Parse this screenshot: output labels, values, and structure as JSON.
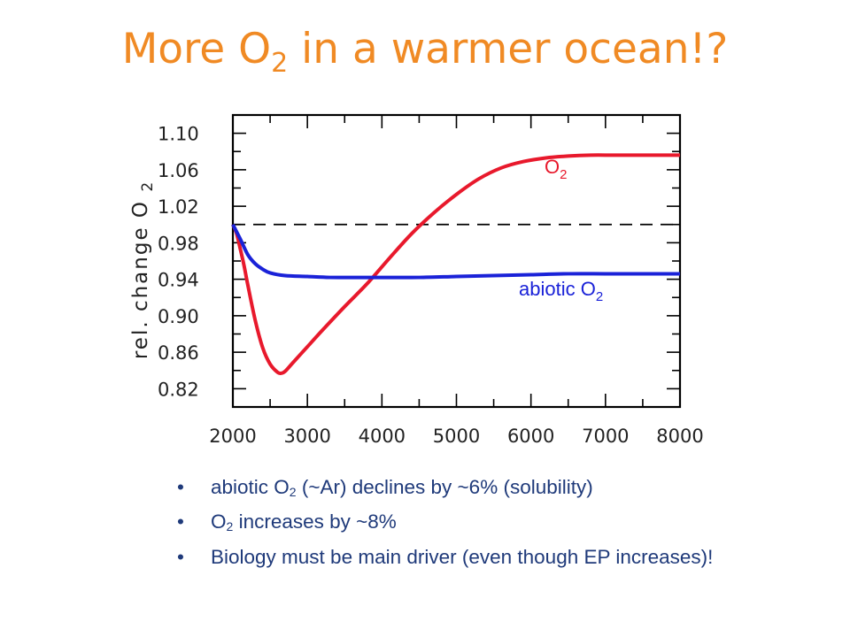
{
  "title": {
    "text_before": "More O",
    "sub": "2",
    "text_after": " in a warmer ocean!?"
  },
  "chart_data": {
    "type": "line",
    "title": "",
    "xlabel": "",
    "ylabel": "rel. change O2",
    "xlim": [
      2000,
      8000
    ],
    "ylim": [
      0.8,
      1.12
    ],
    "x_ticks": [
      "2000",
      "3000",
      "4000",
      "5000",
      "6000",
      "7000",
      "8000"
    ],
    "y_ticks": [
      "1.10",
      "1.06",
      "1.02",
      "0.98",
      "0.94",
      "0.90",
      "0.86",
      "0.82"
    ],
    "reference_line": {
      "y": 1.0,
      "style": "dashed",
      "color": "#000000"
    },
    "grid": false,
    "series": [
      {
        "name": "O2",
        "label_main": "O",
        "label_sub": "2",
        "color": "#e8192c",
        "x": [
          2000,
          2050,
          2100,
          2150,
          2200,
          2300,
          2400,
          2500,
          2600,
          2650,
          2700,
          2800,
          3000,
          3200,
          3500,
          3800,
          4100,
          4400,
          4700,
          5000,
          5300,
          5600,
          5900,
          6200,
          6500,
          6800,
          7100,
          7400,
          7700,
          8000
        ],
        "y": [
          1.0,
          0.99,
          0.973,
          0.955,
          0.934,
          0.895,
          0.865,
          0.847,
          0.838,
          0.837,
          0.839,
          0.848,
          0.866,
          0.884,
          0.91,
          0.935,
          0.963,
          0.99,
          1.013,
          1.033,
          1.05,
          1.062,
          1.069,
          1.073,
          1.075,
          1.076,
          1.076,
          1.076,
          1.076,
          1.076
        ]
      },
      {
        "name": "abiotic O2",
        "label_main": "abiotic O",
        "label_sub": "2",
        "color": "#1a22d8",
        "x": [
          2000,
          2100,
          2200,
          2300,
          2400,
          2500,
          2700,
          3000,
          3300,
          3700,
          4100,
          4500,
          5000,
          5500,
          6000,
          6500,
          7000,
          7500,
          8000
        ],
        "y": [
          1.0,
          0.984,
          0.967,
          0.957,
          0.951,
          0.947,
          0.944,
          0.943,
          0.942,
          0.942,
          0.942,
          0.942,
          0.943,
          0.944,
          0.945,
          0.946,
          0.946,
          0.946,
          0.946
        ]
      }
    ]
  },
  "bullets": [
    {
      "parts": [
        {
          "t": "abiotic O"
        },
        {
          "s": "2"
        },
        {
          "t": " (~Ar) declines by ~6% (solubility)"
        }
      ]
    },
    {
      "parts": [
        {
          "t": "O"
        },
        {
          "s": "2"
        },
        {
          "t": " increases by ~8%"
        }
      ]
    },
    {
      "parts": [
        {
          "t": "Biology must be main driver (even though EP increases)!"
        }
      ]
    }
  ]
}
